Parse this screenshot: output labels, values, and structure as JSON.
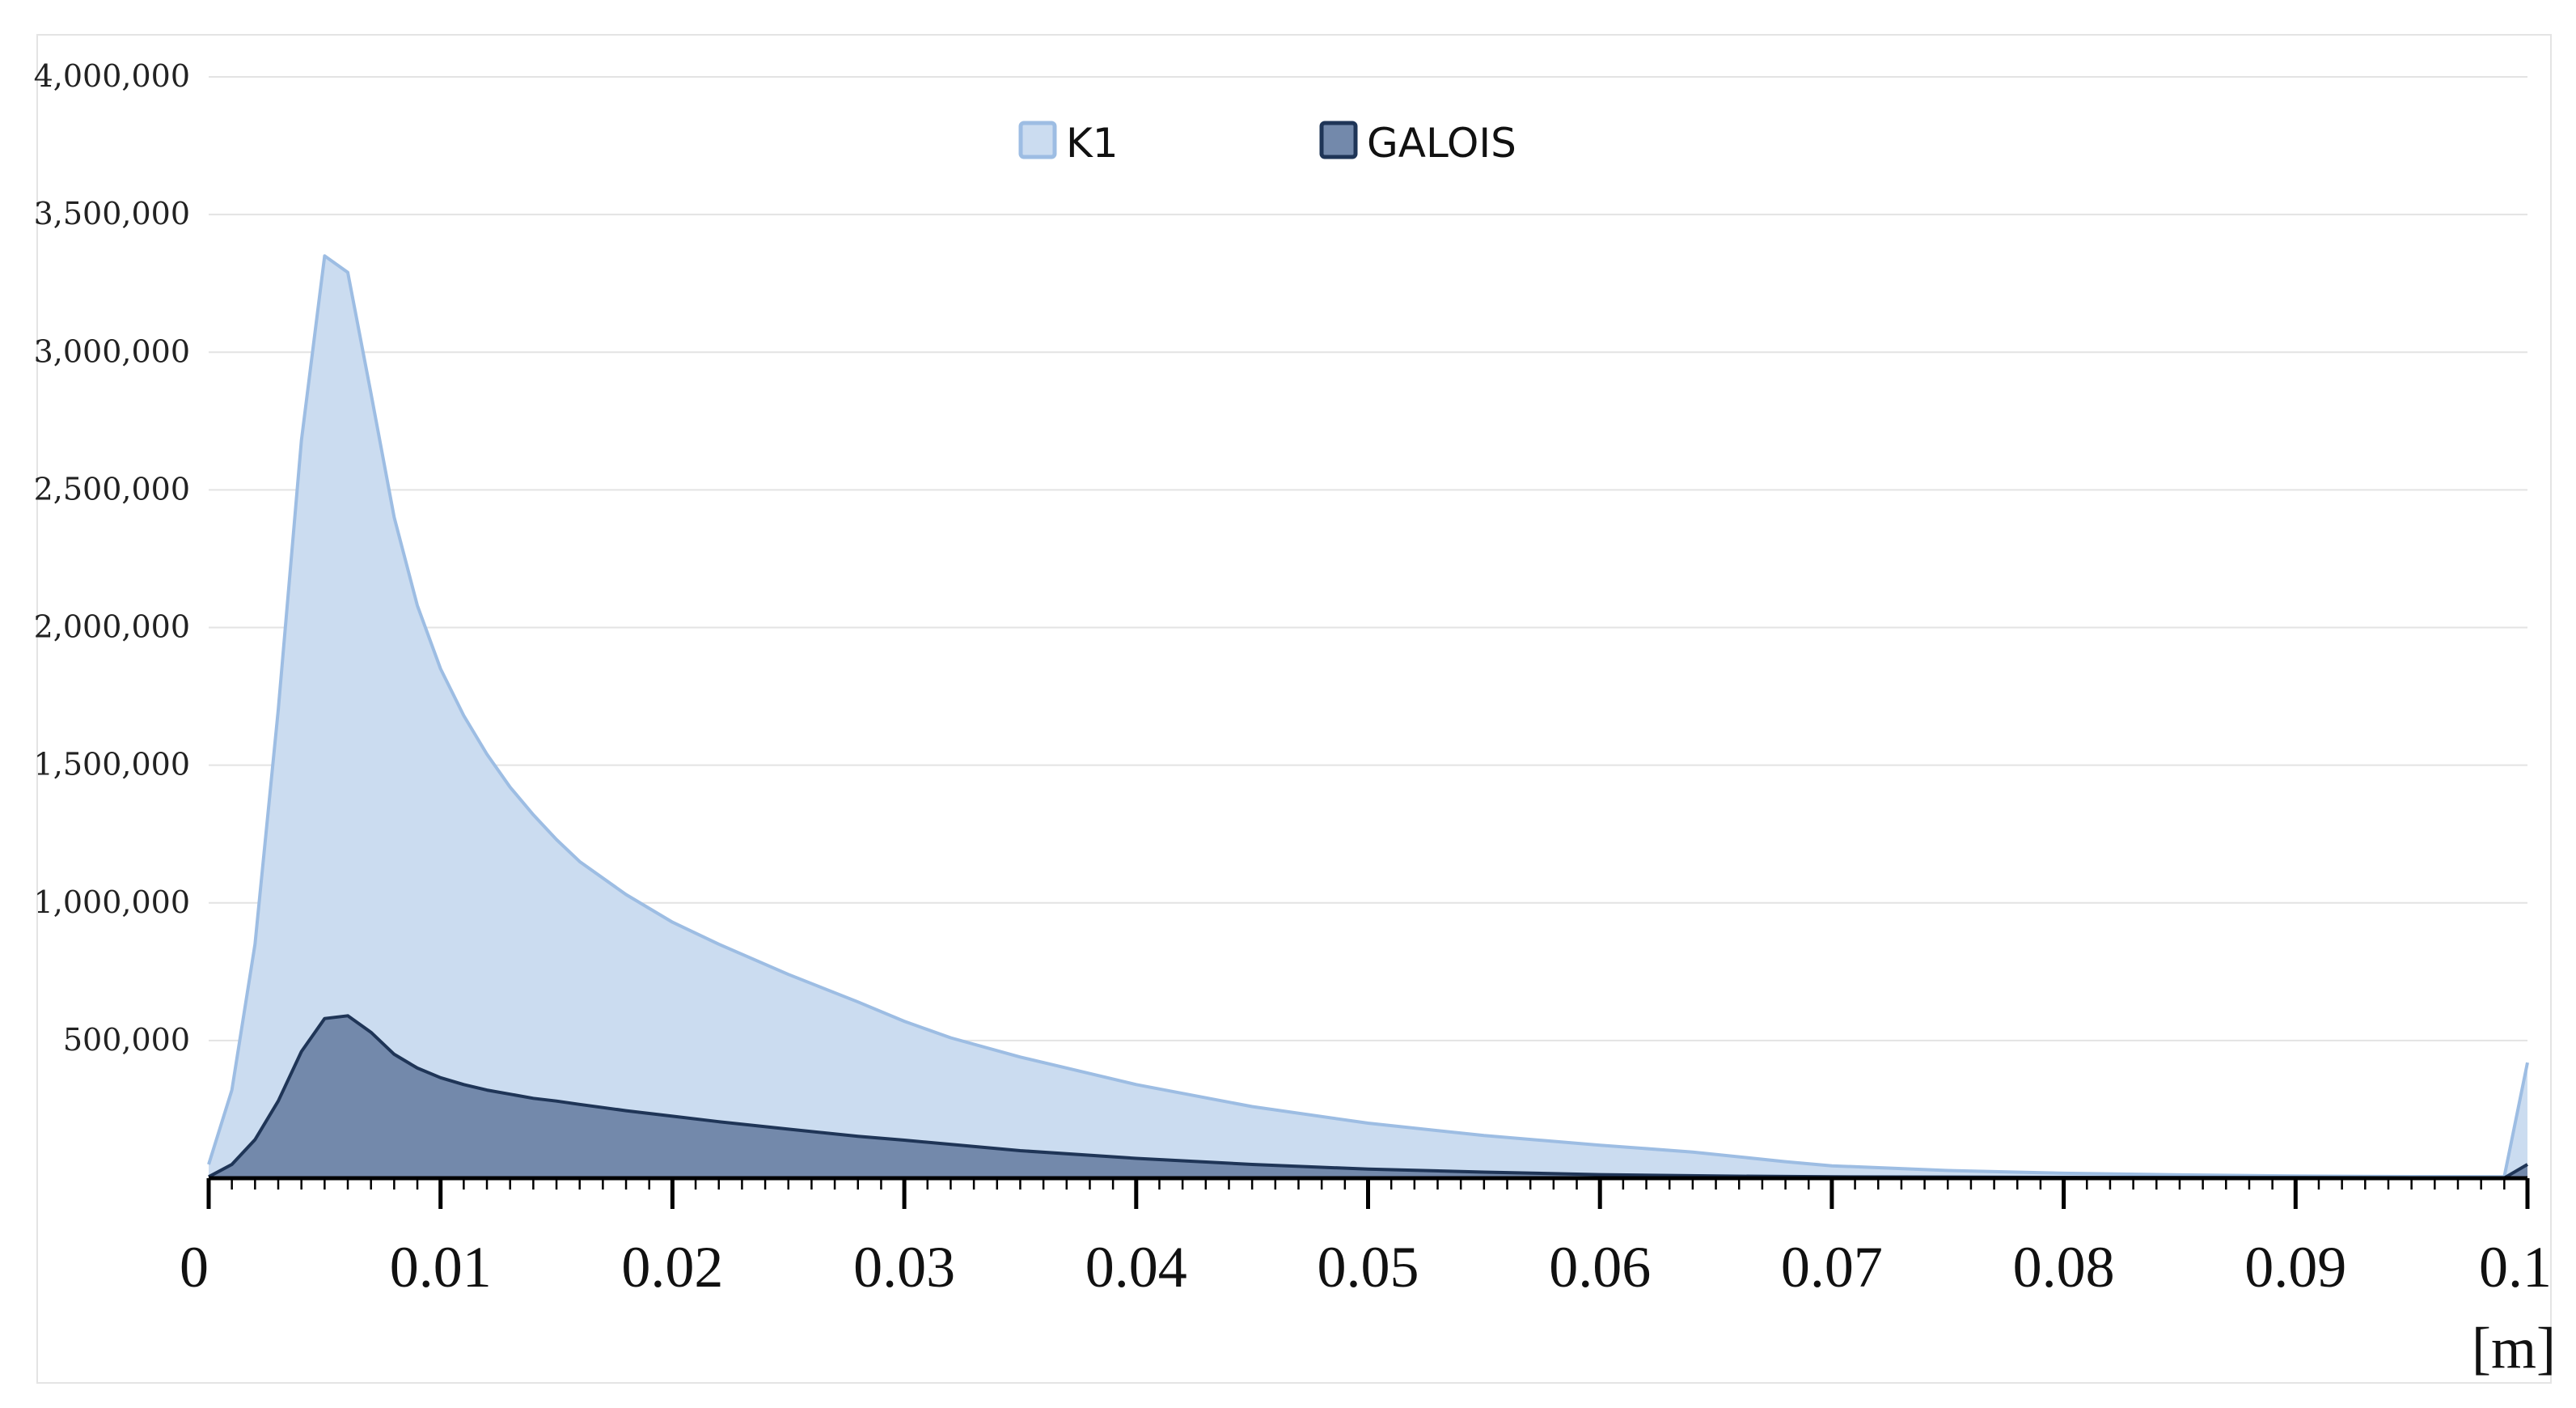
{
  "chart_data": {
    "type": "area",
    "title": "",
    "xlabel": "",
    "ylabel": "",
    "x_unit_label": "[m]",
    "xlim": [
      0,
      0.1
    ],
    "ylim": [
      0,
      4000000
    ],
    "x_ticks": [
      0,
      0.01,
      0.02,
      0.03,
      0.04,
      0.05,
      0.06,
      0.07,
      0.08,
      0.09,
      0.1
    ],
    "x_tick_labels": [
      "0",
      "0.01",
      "0.02",
      "0.03",
      "0.04",
      "0.05",
      "0.06",
      "0.07",
      "0.08",
      "0.09",
      "0.1"
    ],
    "y_ticks": [
      500000,
      1000000,
      1500000,
      2000000,
      2500000,
      3000000,
      3500000,
      4000000
    ],
    "y_tick_labels": [
      "500,000",
      "1,000,000",
      "1,500,000",
      "2,000,000",
      "2,500,000",
      "3,000,000",
      "3,500,000",
      "4,000,000"
    ],
    "grid": true,
    "legend_position": "top-center",
    "series": [
      {
        "name": "K1",
        "fill": "#cbdcf0",
        "stroke": "#9dbde3",
        "points": [
          [
            0,
            50000
          ],
          [
            0.001,
            320000
          ],
          [
            0.002,
            850000
          ],
          [
            0.003,
            1700000
          ],
          [
            0.004,
            2680000
          ],
          [
            0.005,
            3350000
          ],
          [
            0.006,
            3290000
          ],
          [
            0.007,
            2850000
          ],
          [
            0.008,
            2400000
          ],
          [
            0.009,
            2080000
          ],
          [
            0.01,
            1850000
          ],
          [
            0.011,
            1680000
          ],
          [
            0.012,
            1540000
          ],
          [
            0.013,
            1420000
          ],
          [
            0.014,
            1320000
          ],
          [
            0.015,
            1230000
          ],
          [
            0.016,
            1150000
          ],
          [
            0.018,
            1030000
          ],
          [
            0.02,
            930000
          ],
          [
            0.022,
            850000
          ],
          [
            0.025,
            740000
          ],
          [
            0.028,
            640000
          ],
          [
            0.03,
            570000
          ],
          [
            0.032,
            510000
          ],
          [
            0.035,
            440000
          ],
          [
            0.038,
            380000
          ],
          [
            0.04,
            340000
          ],
          [
            0.045,
            260000
          ],
          [
            0.05,
            200000
          ],
          [
            0.055,
            155000
          ],
          [
            0.06,
            120000
          ],
          [
            0.064,
            95000
          ],
          [
            0.068,
            60000
          ],
          [
            0.07,
            45000
          ],
          [
            0.075,
            28000
          ],
          [
            0.08,
            18000
          ],
          [
            0.085,
            12000
          ],
          [
            0.09,
            8000
          ],
          [
            0.095,
            6000
          ],
          [
            0.099,
            5000
          ],
          [
            0.1,
            420000
          ]
        ]
      },
      {
        "name": "GALOIS",
        "fill": "#7389ab",
        "stroke": "#1f3557",
        "points": [
          [
            0,
            5000
          ],
          [
            0.001,
            50000
          ],
          [
            0.002,
            140000
          ],
          [
            0.003,
            280000
          ],
          [
            0.004,
            460000
          ],
          [
            0.005,
            580000
          ],
          [
            0.006,
            590000
          ],
          [
            0.007,
            530000
          ],
          [
            0.008,
            450000
          ],
          [
            0.009,
            400000
          ],
          [
            0.01,
            365000
          ],
          [
            0.011,
            340000
          ],
          [
            0.012,
            320000
          ],
          [
            0.013,
            305000
          ],
          [
            0.014,
            290000
          ],
          [
            0.015,
            280000
          ],
          [
            0.016,
            268000
          ],
          [
            0.018,
            245000
          ],
          [
            0.02,
            225000
          ],
          [
            0.022,
            205000
          ],
          [
            0.025,
            178000
          ],
          [
            0.028,
            152000
          ],
          [
            0.03,
            138000
          ],
          [
            0.035,
            100000
          ],
          [
            0.04,
            72000
          ],
          [
            0.045,
            50000
          ],
          [
            0.05,
            33000
          ],
          [
            0.055,
            22000
          ],
          [
            0.06,
            13000
          ],
          [
            0.065,
            8000
          ],
          [
            0.07,
            5000
          ],
          [
            0.08,
            3000
          ],
          [
            0.09,
            2000
          ],
          [
            0.099,
            1000
          ],
          [
            0.1,
            50000
          ]
        ]
      }
    ]
  },
  "legend": [
    {
      "label": "K1",
      "swatch_fill": "#cbdcf0",
      "swatch_stroke": "#9dbde3"
    },
    {
      "label": "GALOIS",
      "swatch_fill": "#7389ab",
      "swatch_stroke": "#1f3557"
    }
  ]
}
